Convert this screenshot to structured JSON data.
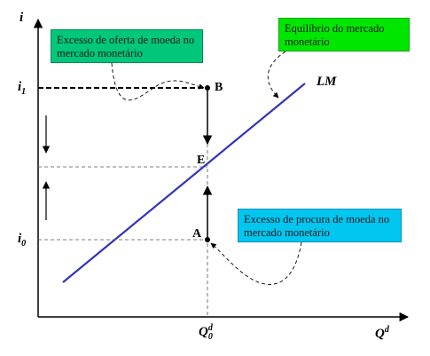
{
  "axes": {
    "y_label": "i",
    "x_label": "Q",
    "x_label_sup": "d"
  },
  "ticks": {
    "i1_base": "i",
    "i1_sub": "1",
    "i0_base": "i",
    "i0_sub": "0",
    "q0_base": "Q",
    "q0_sup": "d",
    "q0_sub": "0"
  },
  "curve": {
    "label": "LM",
    "color": "#3333bb"
  },
  "points": {
    "B": "B",
    "E": "E",
    "A": "A"
  },
  "notes": {
    "excess_supply": "Excesso de oferta de moeda no mercado monetário",
    "equilibrium": "Equilíbrio do mercado monetário",
    "excess_demand": "Excesso de procura de moeda no mercado monetário"
  },
  "colors": {
    "excess_supply_bg": "#00c77a",
    "equilibrium_bg": "#00e600",
    "excess_demand_bg": "#00c6f0"
  }
}
